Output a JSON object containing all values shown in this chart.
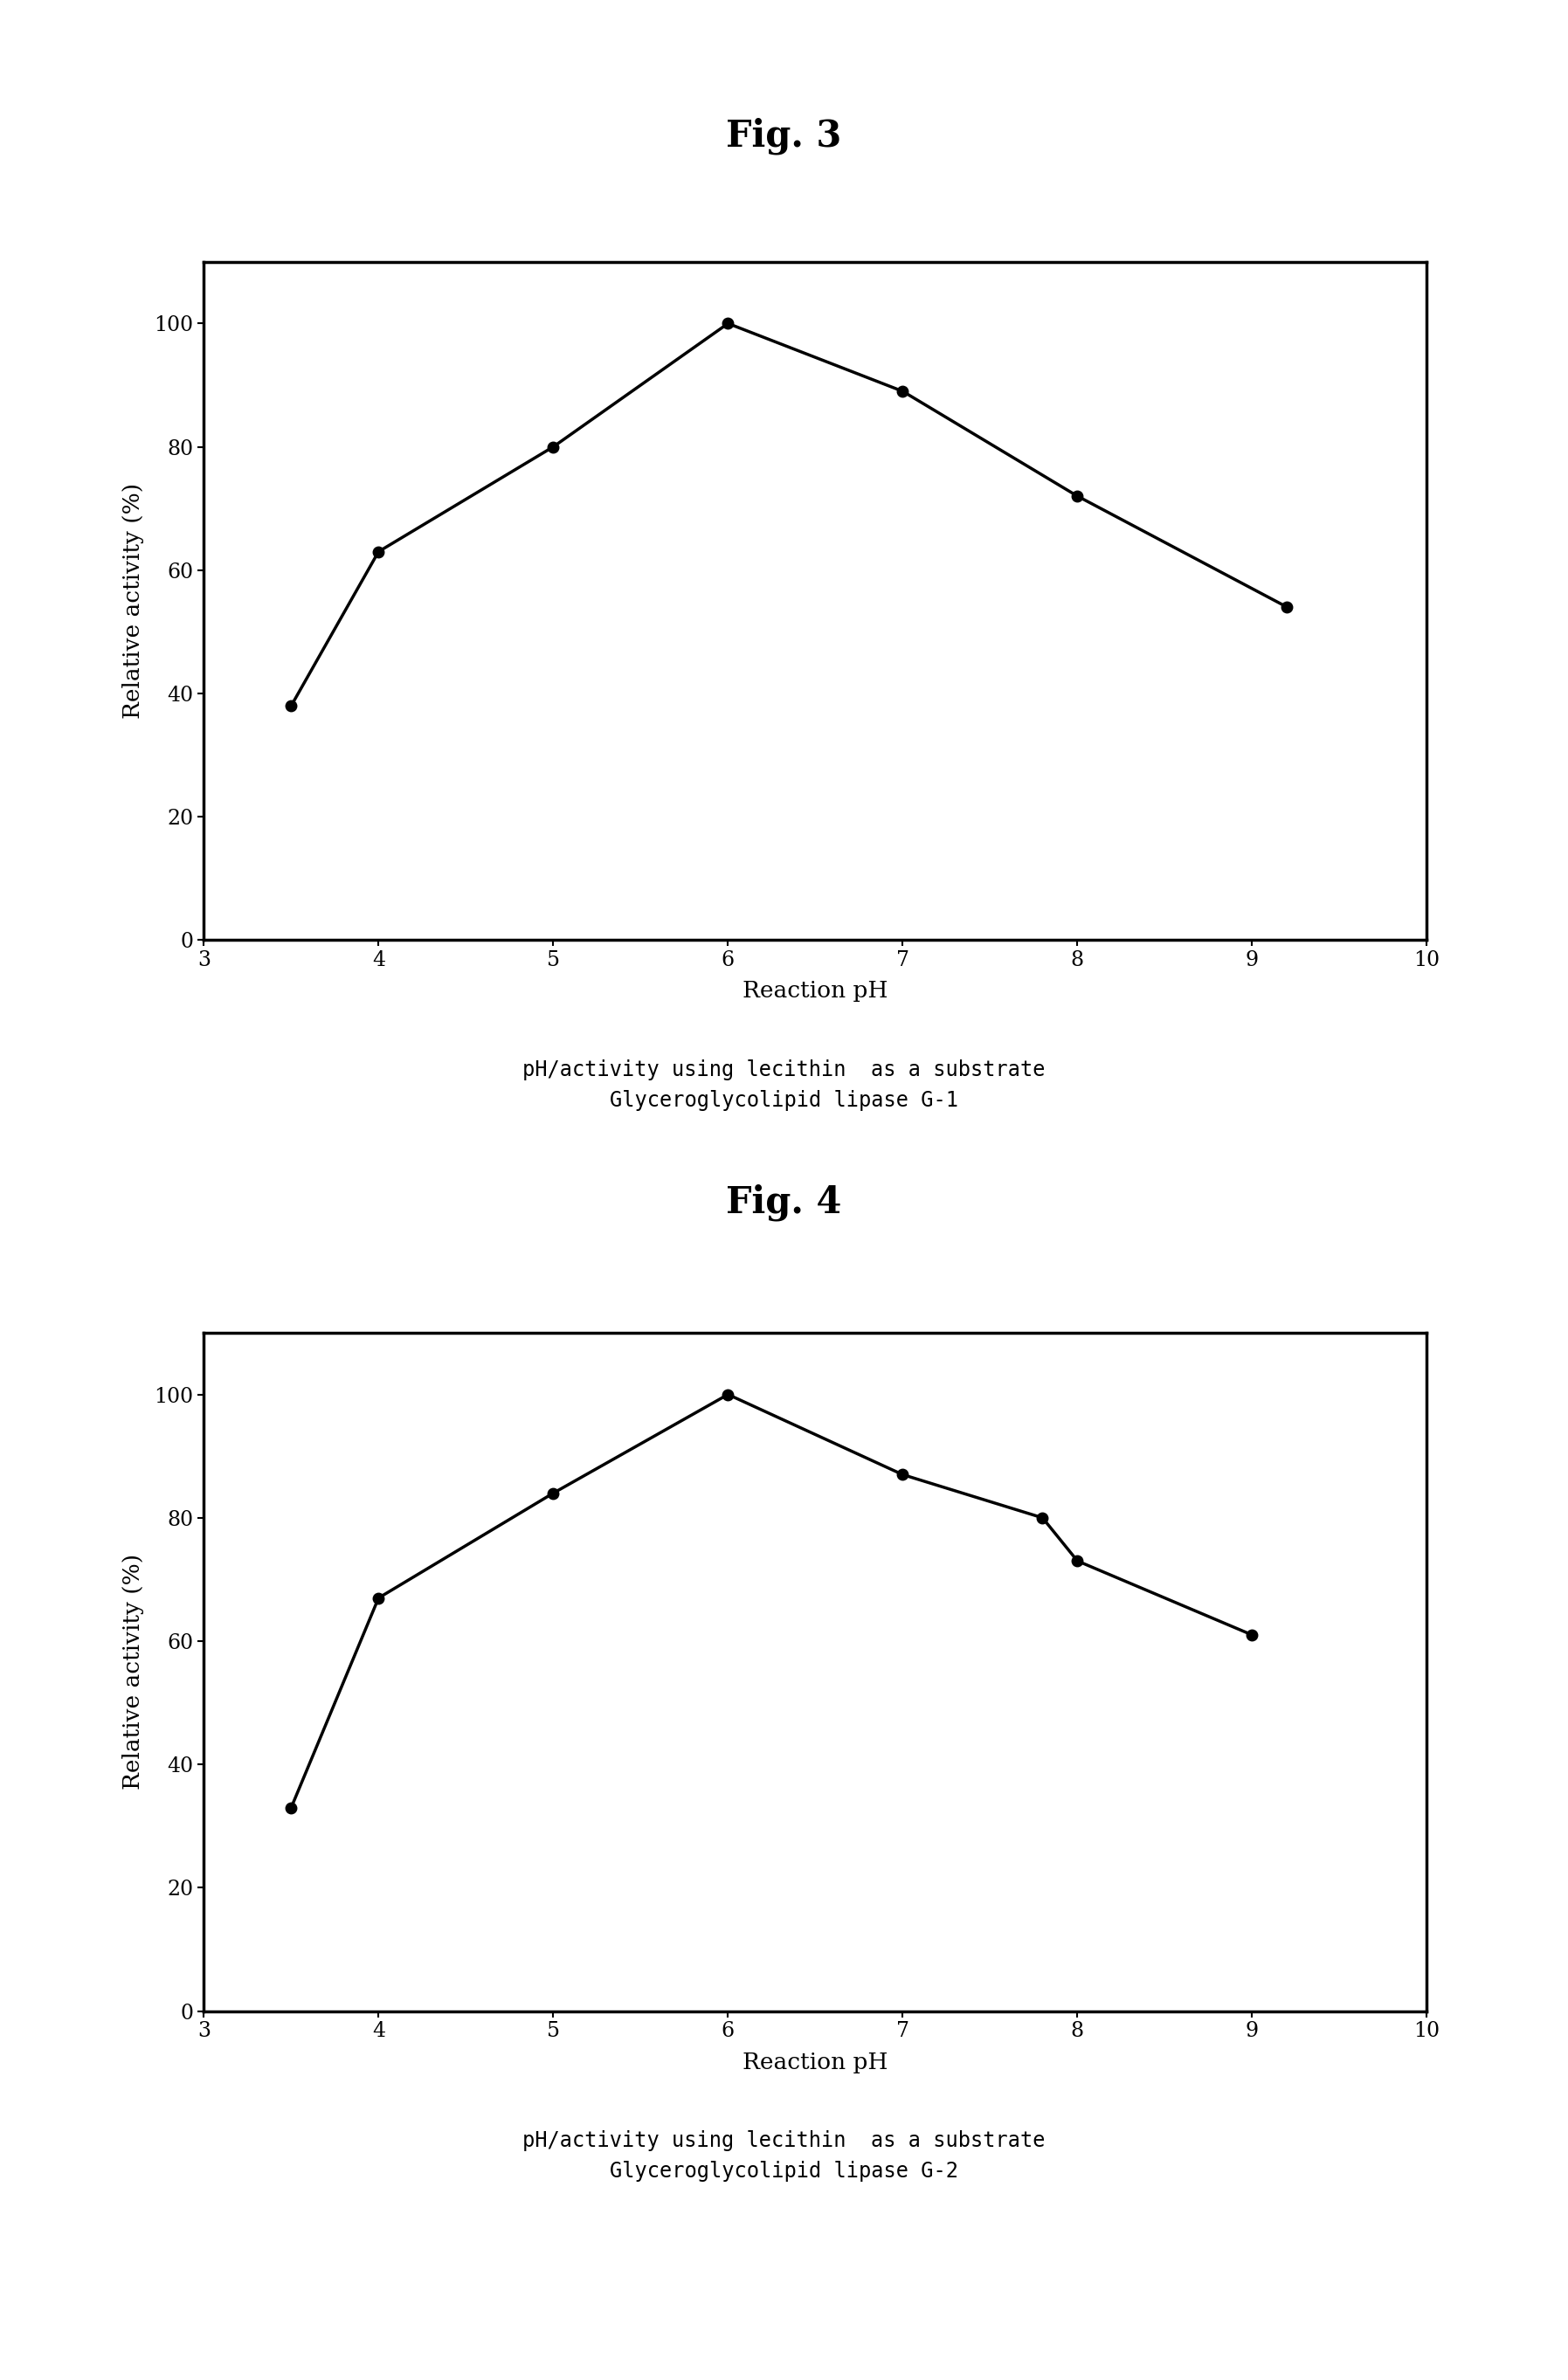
{
  "fig3": {
    "title": "Fig. 3",
    "x": [
      3.5,
      4.0,
      5.0,
      6.0,
      7.0,
      8.0,
      9.2
    ],
    "y": [
      38,
      63,
      80,
      100,
      89,
      72,
      54
    ],
    "xlabel": "Reaction pH",
    "ylabel": "Relative activity (%)",
    "xlim": [
      3,
      10
    ],
    "ylim": [
      0,
      110
    ],
    "xticks": [
      3,
      4,
      5,
      6,
      7,
      8,
      9,
      10
    ],
    "yticks": [
      0,
      20,
      40,
      60,
      80,
      100
    ],
    "caption_line1": "pH/activity using lecithin  as a substrate",
    "caption_line2": "Glyceroglycolipid lipase G-1"
  },
  "fig4": {
    "title": "Fig. 4",
    "x": [
      3.5,
      4.0,
      5.0,
      6.0,
      7.0,
      7.8,
      8.0,
      9.0
    ],
    "y": [
      33,
      67,
      84,
      100,
      87,
      80,
      73,
      61
    ],
    "xlabel": "Reaction pH",
    "ylabel": "Relative activity (%)",
    "xlim": [
      3,
      10
    ],
    "ylim": [
      0,
      110
    ],
    "xticks": [
      3,
      4,
      5,
      6,
      7,
      8,
      9,
      10
    ],
    "yticks": [
      0,
      20,
      40,
      60,
      80,
      100
    ],
    "caption_line1": "pH/activity using lecithin  as a substrate",
    "caption_line2": "Glyceroglycolipid lipase G-2"
  },
  "line_color": "#000000",
  "marker_style": "o",
  "marker_size": 9,
  "marker_color": "#000000",
  "line_width": 2.5,
  "title_fontsize": 30,
  "axis_label_fontsize": 19,
  "tick_fontsize": 17,
  "caption_fontsize": 17,
  "background_color": "#ffffff",
  "spine_linewidth": 2.5
}
